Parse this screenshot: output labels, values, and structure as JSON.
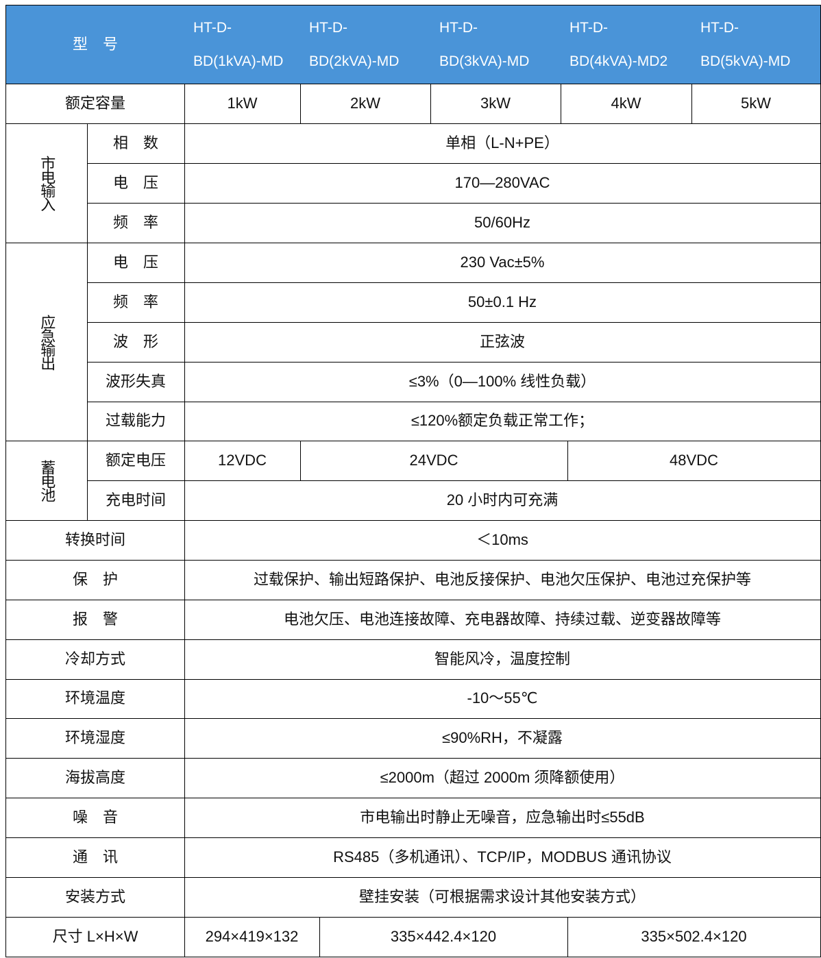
{
  "header": {
    "model_label": "型　号",
    "models": [
      [
        "HT-D-",
        "BD(1kVA)-MD"
      ],
      [
        "HT-D-",
        "BD(2kVA)-MD"
      ],
      [
        "HT-D-",
        "BD(3kVA)-MD"
      ],
      [
        "HT-D-",
        "BD(4kVA)-MD2"
      ],
      [
        "HT-D-",
        "BD(5kVA)-MD"
      ]
    ]
  },
  "header_color": "#4a94d8",
  "rated": {
    "label": "额定容量",
    "values": [
      "1kW",
      "2kW",
      "3kW",
      "4kW",
      "5kW"
    ]
  },
  "mains": {
    "group": "市电输入",
    "rows": [
      {
        "label": "相　数",
        "value": "单相（L-N+PE）"
      },
      {
        "label": "电　压",
        "value": "170—280VAC"
      },
      {
        "label": "频　率",
        "value": "50/60Hz"
      }
    ]
  },
  "emergency": {
    "group": "应急输出",
    "rows": [
      {
        "label": "电　压",
        "value": "230 Vac±5%"
      },
      {
        "label": "频　率",
        "value": "50±0.1 Hz"
      },
      {
        "label": "波　形",
        "value": "正弦波"
      },
      {
        "label": "波形失真",
        "value": "≤3%（0—100% 线性负载）"
      },
      {
        "label": "过载能力",
        "value": "≤120%额定负载正常工作；"
      }
    ]
  },
  "battery": {
    "group": "蓄电池",
    "voltage_label": "额定电压",
    "voltages": [
      "12VDC",
      "24VDC",
      "48VDC"
    ],
    "charge_label": "充电时间",
    "charge_value": "20 小时内可充满"
  },
  "rows": [
    {
      "label": "转换时间",
      "value": "＜10ms"
    },
    {
      "label": "保　护",
      "value": "过载保护、输出短路保护、电池反接保护、电池欠压保护、电池过充保护等"
    },
    {
      "label": "报　警",
      "value": "电池欠压、电池连接故障、充电器故障、持续过载、逆变器故障等"
    },
    {
      "label": "冷却方式",
      "value": "智能风冷，温度控制"
    },
    {
      "label": "环境温度",
      "value": "-10～55℃"
    },
    {
      "label": "环境湿度",
      "value": "≤90%RH，不凝露"
    },
    {
      "label": "海拔高度",
      "value": "≤2000m（超过 2000m 须降额使用）"
    },
    {
      "label": "噪　音",
      "value": "市电输出时静止无噪音，应急输出时≤55dB"
    },
    {
      "label": "通　讯",
      "value": "RS485（多机通讯）、TCP/IP，MODBUS 通讯协议"
    },
    {
      "label": "安装方式",
      "value": "壁挂安装（可根据需求设计其他安装方式）"
    }
  ],
  "size": {
    "label": "尺寸 L×H×W",
    "values": [
      "294×419×132",
      "335×442.4×120",
      "335×502.4×120"
    ]
  }
}
